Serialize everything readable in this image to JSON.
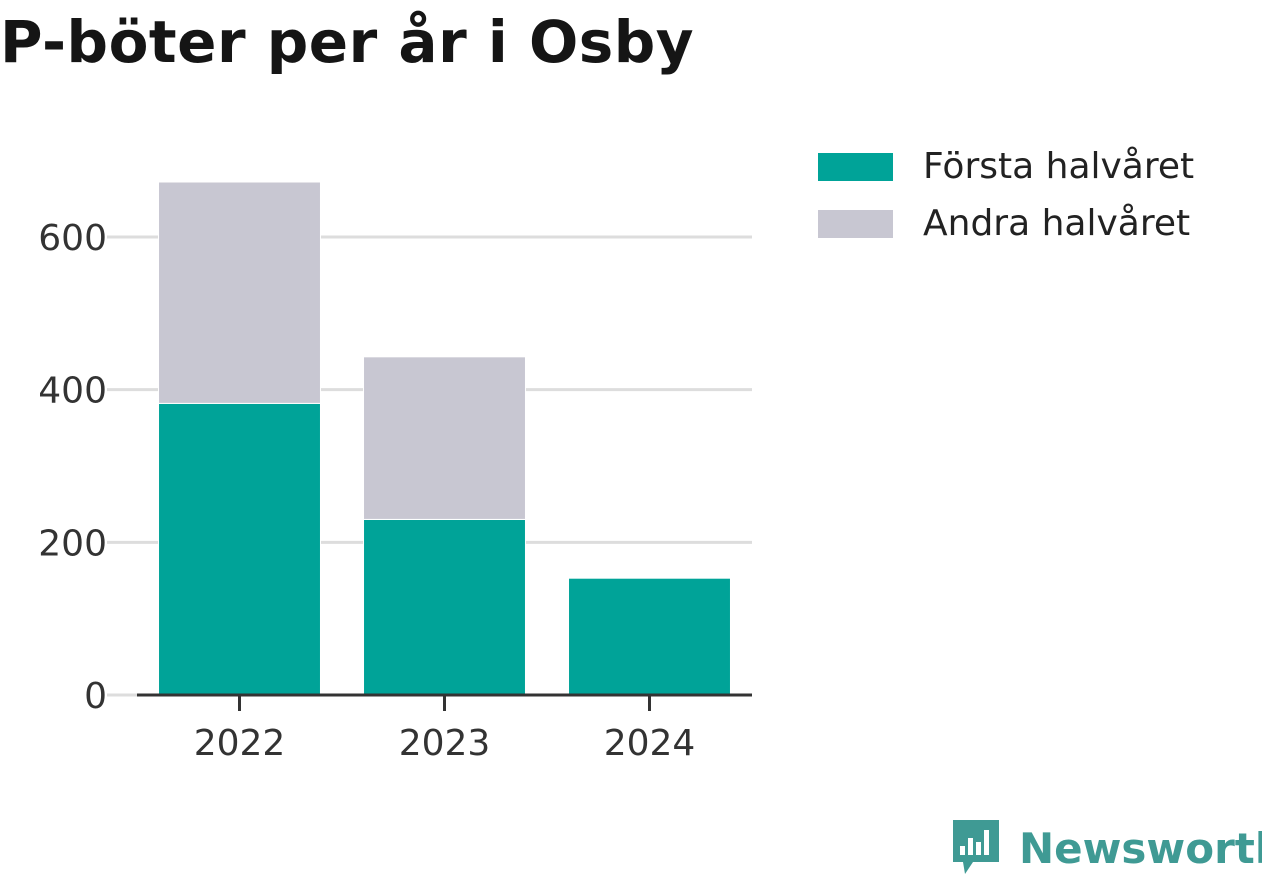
{
  "chart_data": {
    "type": "bar",
    "stacked": true,
    "title": "P-böter per år i Osby",
    "categories": [
      "2022",
      "2023",
      "2024"
    ],
    "series": [
      {
        "name": "Första halvåret",
        "color": "#00a398",
        "values": [
          382,
          230,
          153
        ]
      },
      {
        "name": "Andra halvåret",
        "color": "#c8c7d2",
        "values": [
          290,
          213,
          0
        ]
      }
    ],
    "yticks": [
      0,
      200,
      400,
      600
    ],
    "ylim": [
      0,
      672
    ],
    "xlabel": "",
    "ylabel": "",
    "grid": true,
    "legend_position": "right"
  },
  "brand": {
    "name": "Newsworthy",
    "color": "#3f9a94",
    "icon": "newsworthy-logo-icon"
  }
}
